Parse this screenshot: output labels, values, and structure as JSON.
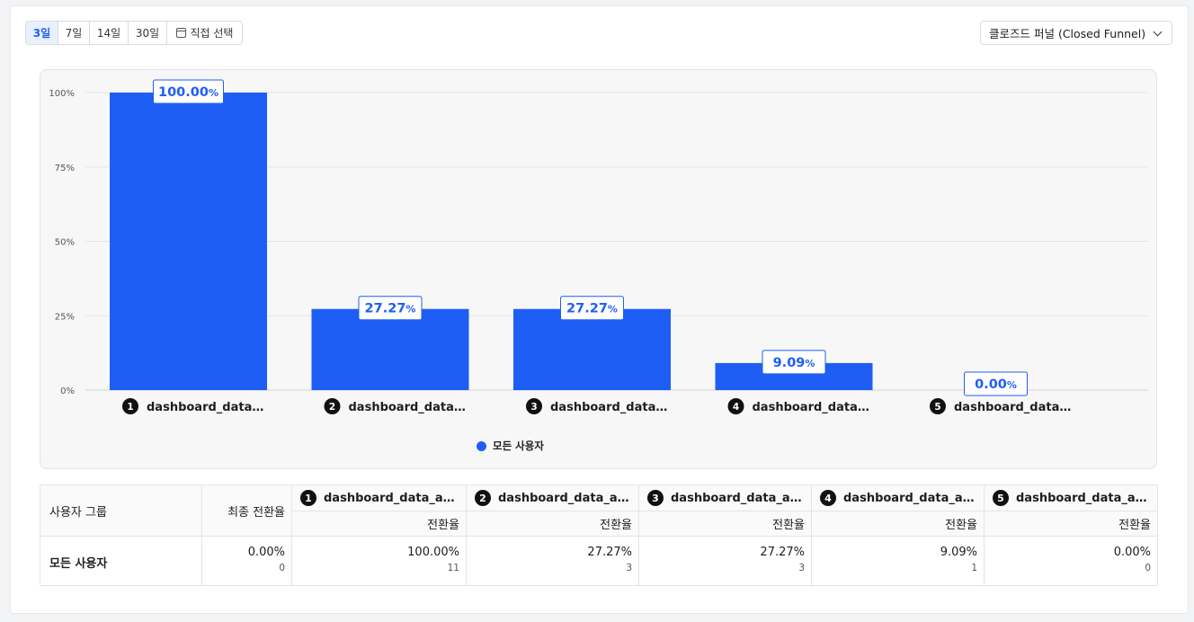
{
  "period": {
    "options": [
      "3일",
      "7일",
      "14일",
      "30일"
    ],
    "active": "3일",
    "custom_label": "직접 선택"
  },
  "funnel_dropdown": {
    "value": "클로즈드 퍼널 (Closed Funnel)"
  },
  "chart_data": {
    "type": "bar",
    "categories": [
      "dashboard_data…",
      "dashboard_data…",
      "dashboard_data…",
      "dashboard_data…",
      "dashboard_data…"
    ],
    "step_numbers": [
      "1",
      "2",
      "3",
      "4",
      "5"
    ],
    "series": [
      {
        "name": "모든 사용자",
        "values": [
          100.0,
          27.27,
          27.27,
          9.09,
          0.0
        ],
        "color": "#1f5ef5"
      }
    ],
    "value_labels": [
      "100.00",
      "27.27",
      "27.27",
      "9.09",
      "0.00"
    ],
    "value_suffix": "%",
    "ylim": [
      0,
      100
    ],
    "yticks": [
      "0%",
      "25%",
      "50%",
      "75%",
      "100%"
    ],
    "ytick_values": [
      0,
      25,
      50,
      75,
      100
    ],
    "grid": true,
    "legend": "bottom-center"
  },
  "legend": {
    "label": "모든 사용자"
  },
  "table": {
    "group_header": "사용자 그룹",
    "final_header": "최종 전환율",
    "sub_header": "전환율",
    "steps": [
      {
        "num": "1",
        "name": "dashboard_data_ana…"
      },
      {
        "num": "2",
        "name": "dashboard_data_ana…"
      },
      {
        "num": "3",
        "name": "dashboard_data_ana…"
      },
      {
        "num": "4",
        "name": "dashboard_data_ana…"
      },
      {
        "num": "5",
        "name": "dashboard_data_ana…"
      }
    ],
    "row": {
      "group": "모든 사용자",
      "final_rate": "0.00%",
      "final_count": "0",
      "cells": [
        {
          "rate": "100.00%",
          "count": "11"
        },
        {
          "rate": "27.27%",
          "count": "3"
        },
        {
          "rate": "27.27%",
          "count": "3"
        },
        {
          "rate": "9.09%",
          "count": "1"
        },
        {
          "rate": "0.00%",
          "count": "0"
        }
      ]
    }
  }
}
